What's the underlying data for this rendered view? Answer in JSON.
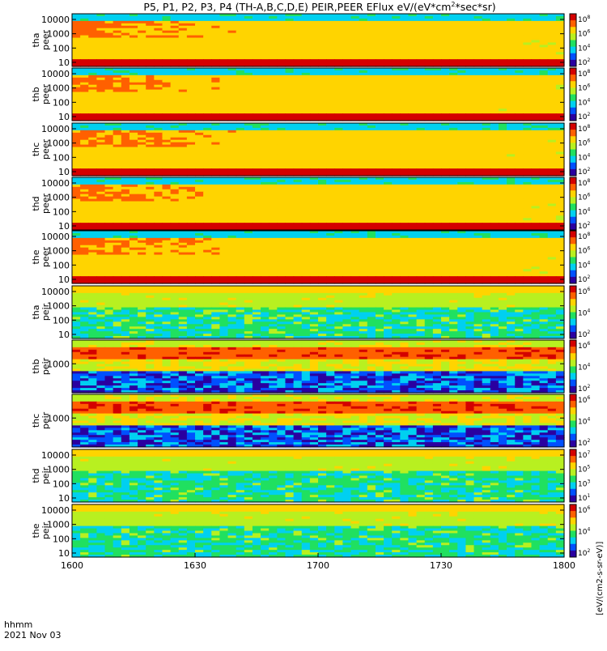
{
  "figure": {
    "title": "P5, P1, P2, P3, P4 (TH-A,B,C,D,E) PEIR,PEER EFlux eV/(eV*cm",
    "title_sup": "2",
    "title_tail": "*sec*sr)",
    "time_label_line1": "hhmm",
    "time_label_line2": "2021 Nov 03",
    "colorbar_unit_label": "[eV/(cm2-s-sr-eV)]"
  },
  "chart_data": {
    "type": "heatmap",
    "x_axis": {
      "ticks": [
        "1600",
        "1630",
        "1700",
        "1730",
        "1800"
      ],
      "range": [
        "16:00",
        "18:00"
      ]
    },
    "colormap": [
      "#2a00a0",
      "#0050ff",
      "#00d0f0",
      "#20e060",
      "#b8f020",
      "#ffd400",
      "#ff6000",
      "#d40000"
    ],
    "panels": [
      {
        "label_top": "tha",
        "label_bottom": "peer",
        "y_ticks": [
          "10",
          "100",
          "1000",
          "10000"
        ],
        "cbar_ticks": [
          "10",
          "10",
          "10",
          "10"
        ],
        "cbar_exps": [
          "8",
          "6",
          "4",
          "2"
        ],
        "pattern": "peer"
      },
      {
        "label_top": "thb",
        "label_bottom": "peer",
        "y_ticks": [
          "10",
          "100",
          "1000",
          "10000"
        ],
        "cbar_ticks": [
          "10",
          "10",
          "10",
          "10"
        ],
        "cbar_exps": [
          "8",
          "6",
          "4",
          "2"
        ],
        "pattern": "peer"
      },
      {
        "label_top": "thc",
        "label_bottom": "peer",
        "y_ticks": [
          "10",
          "100",
          "1000",
          "10000"
        ],
        "cbar_ticks": [
          "10",
          "10",
          "10",
          "10"
        ],
        "cbar_exps": [
          "8",
          "6",
          "4",
          "2"
        ],
        "pattern": "peer"
      },
      {
        "label_top": "thd",
        "label_bottom": "peer",
        "y_ticks": [
          "10",
          "100",
          "1000",
          "10000"
        ],
        "cbar_ticks": [
          "10",
          "10",
          "10",
          "10"
        ],
        "cbar_exps": [
          "8",
          "6",
          "4",
          "2"
        ],
        "pattern": "peer"
      },
      {
        "label_top": "the",
        "label_bottom": "peer",
        "y_ticks": [
          "10",
          "100",
          "1000",
          "10000"
        ],
        "cbar_ticks": [
          "10",
          "10",
          "10",
          "10"
        ],
        "cbar_exps": [
          "8",
          "6",
          "4",
          "2"
        ],
        "pattern": "peer"
      },
      {
        "label_top": "tha",
        "label_bottom": "peir",
        "y_ticks": [
          "10",
          "100",
          "1000",
          "10000"
        ],
        "cbar_ticks": [
          "10",
          "10",
          "10"
        ],
        "cbar_exps": [
          "6",
          "4",
          "2"
        ],
        "pattern": "peir"
      },
      {
        "label_top": "thb",
        "label_bottom": "peir",
        "y_ticks": [
          "1000"
        ],
        "cbar_ticks": [
          "10",
          "10",
          "10"
        ],
        "cbar_exps": [
          "6",
          "4",
          "2"
        ],
        "pattern": "peir_speckle"
      },
      {
        "label_top": "thc",
        "label_bottom": "peir",
        "y_ticks": [
          "1000"
        ],
        "cbar_ticks": [
          "10",
          "10",
          "10"
        ],
        "cbar_exps": [
          "6",
          "4",
          "2"
        ],
        "pattern": "peir_speckle"
      },
      {
        "label_top": "thd",
        "label_bottom": "peir",
        "y_ticks": [
          "10",
          "100",
          "1000",
          "10000"
        ],
        "cbar_ticks": [
          "10",
          "10",
          "10",
          "10"
        ],
        "cbar_exps": [
          "7",
          "5",
          "3",
          "1"
        ],
        "pattern": "peir"
      },
      {
        "label_top": "the",
        "label_bottom": "peir",
        "y_ticks": [
          "10",
          "100",
          "1000",
          "10000"
        ],
        "cbar_ticks": [
          "10",
          "10",
          "10"
        ],
        "cbar_exps": [
          "6",
          "4",
          "2"
        ],
        "pattern": "peir"
      }
    ]
  }
}
